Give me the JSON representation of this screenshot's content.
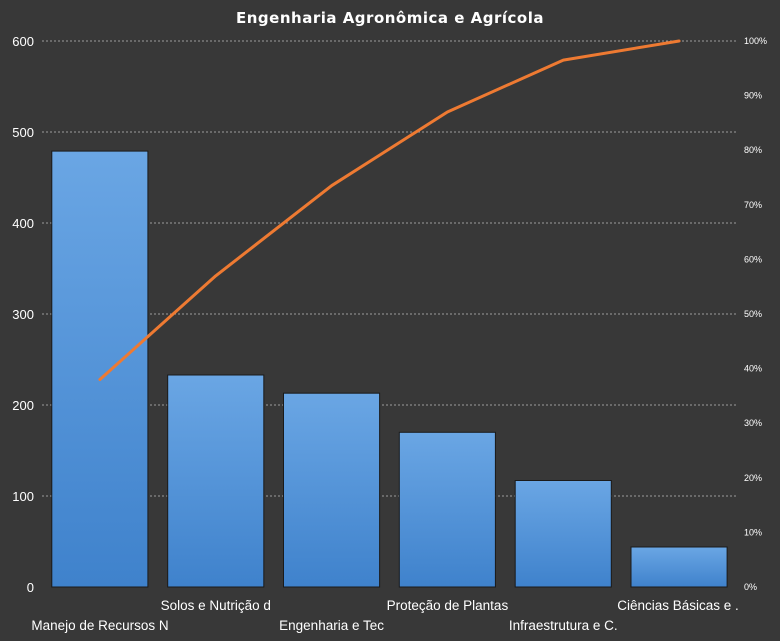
{
  "chart_data": {
    "type": "bar",
    "title": "Engenharia Agronômica e Agrícola",
    "categories": [
      "Manejo de Recursos N",
      "Solos e Nutrição d",
      "Engenharia e Tec",
      "Proteção de Plantas",
      "Infraestrutura e C.",
      "Ciências Básicas e ."
    ],
    "series": [
      {
        "type": "bar",
        "values": [
          479,
          233,
          213,
          170,
          117,
          44
        ]
      },
      {
        "type": "line",
        "axis": "right",
        "values": [
          0.38,
          0.57,
          0.735,
          0.87,
          0.965,
          1.0
        ]
      }
    ],
    "ylim": [
      0,
      600
    ],
    "yticks": [
      0,
      100,
      200,
      300,
      400,
      500,
      600
    ],
    "y2lim": [
      0,
      1
    ],
    "y2ticks": [
      "0%",
      "10%",
      "20%",
      "30%",
      "40%",
      "50%",
      "60%",
      "70%",
      "80%",
      "90%",
      "100%"
    ],
    "grid": true,
    "colors": {
      "bar": "#4a90d9",
      "line": "#ee7a32",
      "background": "#383838"
    }
  }
}
